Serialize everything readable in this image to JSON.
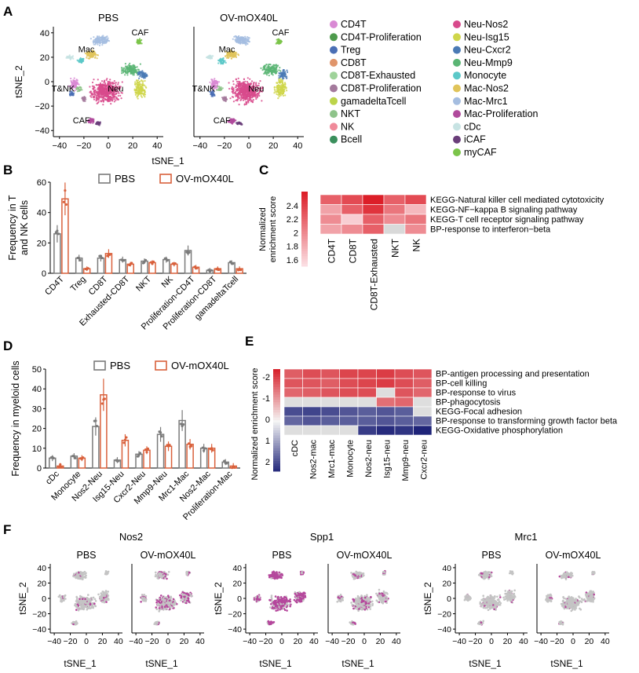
{
  "panels": {
    "A": "A",
    "B": "B",
    "C": "C",
    "D": "D",
    "E": "E",
    "F": "F"
  },
  "panelA": {
    "conditions": [
      "PBS",
      "OV-mOX40L"
    ],
    "xlabel": "tSNE_1",
    "ylabel": "tSNE_2",
    "xticks": [
      "−40",
      "−20",
      "0",
      "20",
      "40"
    ],
    "yticks": [
      "40",
      "20",
      "0",
      "−20",
      "−40"
    ],
    "cluster_labels": [
      "Mac",
      "CAF",
      "T&NK",
      "Neu",
      "CAF"
    ],
    "legend_col1": [
      {
        "name": "CD4T",
        "color": "#d98ad4"
      },
      {
        "name": "CD4T-Proliferation",
        "color": "#4e9a4c"
      },
      {
        "name": "Treg",
        "color": "#4a6fb5"
      },
      {
        "name": "CD8T",
        "color": "#e0956b"
      },
      {
        "name": "CD8T-Exhausted",
        "color": "#9fd39a"
      },
      {
        "name": "CD8T-Proliferation",
        "color": "#a47a9c"
      },
      {
        "name": "gamadeltaTcell",
        "color": "#bcd44a"
      },
      {
        "name": "NKT",
        "color": "#8ec38a"
      },
      {
        "name": "NK",
        "color": "#f08a9a"
      },
      {
        "name": "Bcell",
        "color": "#3a8f5c"
      }
    ],
    "legend_col2": [
      {
        "name": "Neu-Nos2",
        "color": "#d84a8c"
      },
      {
        "name": "Neu-Isg15",
        "color": "#cfd64a"
      },
      {
        "name": "Neu-Cxcr2",
        "color": "#4a7ab5"
      },
      {
        "name": "Neu-Mmp9",
        "color": "#5ab574"
      },
      {
        "name": "Monocyte",
        "color": "#5bc8c8"
      },
      {
        "name": "Mac-Nos2",
        "color": "#e0c45a"
      },
      {
        "name": "Mac-Mrc1",
        "color": "#a5bde0"
      },
      {
        "name": "Mac-Proliferation",
        "color": "#b04a9c"
      },
      {
        "name": "cDc",
        "color": "#c7e3e3"
      },
      {
        "name": "iCAF",
        "color": "#6a3e7a"
      },
      {
        "name": "myCAF",
        "color": "#7bc44a"
      }
    ]
  },
  "chart_data": [
    {
      "id": "B",
      "type": "bar",
      "ylabel": "Frequency in T and NK cells",
      "ylabel_lines": [
        "Frequency in T",
        "and NK cells"
      ],
      "ylim": [
        0,
        60
      ],
      "yticks": [
        "0",
        "20",
        "40",
        "60"
      ],
      "categories": [
        "CD4T",
        "Treg",
        "CD8T",
        "Exhausted-CD8T",
        "NKT",
        "NK",
        "Proliferation-CD4T",
        "Proliferation-CD8T",
        "gamadeltaTcell"
      ],
      "series": [
        {
          "name": "PBS",
          "color": "#7a7a7a",
          "values": [
            26,
            10,
            10,
            9,
            8,
            9,
            15,
            2,
            7
          ]
        },
        {
          "name": "OV-mOX40L",
          "color": "#d9603b",
          "values": [
            49,
            3,
            13,
            6,
            7,
            6,
            4,
            3,
            3
          ]
        }
      ]
    },
    {
      "id": "C",
      "type": "heatmap",
      "colorbar_label": "Normalized enrichment score",
      "colorbar_lines": [
        "Normalized",
        "enrichment score"
      ],
      "colorbar_ticks": [
        "2.4",
        "2.2",
        "2",
        "1.8",
        "1.6"
      ],
      "columns": [
        "CD4T",
        "CD8T",
        "CD8T-Exhausted",
        "NKT",
        "NK"
      ],
      "rows": [
        "KEGG-Natural killer cell mediated cytotoxicity",
        "KEGG-NF−kappa B signaling pathway",
        "KEGG-T cell receptor signaling pathway",
        "BP-response to interferon−beta"
      ],
      "values": [
        [
          2.2,
          2.3,
          2.5,
          2.2,
          2.3
        ],
        [
          1.9,
          2.2,
          2.4,
          2.1,
          1.8
        ],
        [
          2.0,
          1.7,
          2.2,
          2.0,
          2.1
        ],
        [
          1.9,
          2.0,
          2.2,
          null,
          2.0
        ]
      ]
    },
    {
      "id": "D",
      "type": "bar",
      "ylabel": "Frequency in myeloid cells",
      "ylim": [
        0,
        50
      ],
      "yticks": [
        "0",
        "10",
        "20",
        "30",
        "40",
        "50"
      ],
      "categories": [
        "cDc",
        "Monocyte",
        "Nos2-Neu",
        "Isg15-Neu",
        "Cxcr2-Neu",
        "Mmp9-Neu",
        "Mrc1-Mac",
        "Nos2-Mac",
        "Proliferation-Mac"
      ],
      "series": [
        {
          "name": "PBS",
          "color": "#7a7a7a",
          "values": [
            5,
            6,
            21,
            4,
            7,
            17,
            24,
            10,
            3
          ]
        },
        {
          "name": "OV-mOX40L",
          "color": "#d9603b",
          "values": [
            1,
            5,
            37,
            14,
            9,
            11,
            12,
            10,
            1
          ]
        }
      ]
    },
    {
      "id": "E",
      "type": "heatmap",
      "colorbar_label": "Normalized enrichment score",
      "colorbar_ticks": [
        "-2",
        "-1",
        "0",
        "1",
        "2"
      ],
      "columns": [
        "cDC",
        "Nos2-mac",
        "Mrc1-mac",
        "Monocyte",
        "Nos2-neu",
        "Isg15-neu",
        "Mmp9-neu",
        "Cxcr2-neu"
      ],
      "rows": [
        "BP-antigen processing and presentation",
        "BP-cell killing",
        "BP-response to virus",
        "BP-phagocytosis",
        "KEGG-Focal adhesion",
        "BP-response to transforming growth factor beta",
        "KEGG-Oxidative phosphorylation"
      ],
      "values": [
        [
          -1.8,
          -2.0,
          -1.9,
          -2.1,
          -2.1,
          -2.2,
          -2.0,
          -1.9
        ],
        [
          -1.9,
          -1.9,
          -1.8,
          -2.0,
          -2.1,
          -2.2,
          -2.0,
          -1.8
        ],
        [
          -1.7,
          -1.8,
          -1.9,
          -2.0,
          -2.0,
          null,
          -1.9,
          -1.7
        ],
        [
          null,
          null,
          null,
          null,
          null,
          -1.6,
          -1.7,
          null
        ],
        [
          2.0,
          2.1,
          2.0,
          1.9,
          1.8,
          1.9,
          1.8,
          null
        ],
        [
          1.7,
          1.9,
          1.8,
          1.8,
          1.8,
          1.9,
          1.8,
          1.7
        ],
        [
          null,
          null,
          null,
          null,
          2.2,
          2.4,
          2.3,
          2.5
        ]
      ]
    }
  ],
  "panelF": {
    "genes": [
      "Nos2",
      "Spp1",
      "Mrc1"
    ],
    "conditions": [
      "PBS",
      "OV-mOX40L"
    ],
    "xlabel": "tSNE_1",
    "ylabel": "tSNE_2",
    "xticks": [
      "−40",
      "−20",
      "0",
      "20",
      "40"
    ],
    "yticks": [
      "40",
      "20",
      "0",
      "−20",
      "−40"
    ],
    "gray": "#c4c4c4",
    "expr": "#b5479c"
  }
}
